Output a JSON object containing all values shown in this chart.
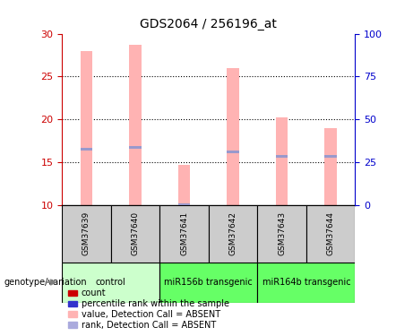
{
  "title": "GDS2064 / 256196_at",
  "samples": [
    "GSM37639",
    "GSM37640",
    "GSM37641",
    "GSM37642",
    "GSM37643",
    "GSM37644"
  ],
  "bar_values": [
    28.0,
    28.7,
    14.7,
    26.0,
    20.2,
    19.0
  ],
  "rank_values": [
    16.5,
    16.7,
    10.0,
    16.2,
    15.7,
    15.7
  ],
  "ylim_left": [
    10,
    30
  ],
  "ylim_right": [
    0,
    100
  ],
  "yticks_left": [
    10,
    15,
    20,
    25,
    30
  ],
  "yticks_right": [
    0,
    25,
    50,
    75,
    100
  ],
  "bar_color": "#FFB3B3",
  "rank_color": "#9999CC",
  "bar_width": 0.25,
  "group_positions": [
    {
      "start": 0,
      "end": 2,
      "label": "control",
      "color": "#CCFFCC"
    },
    {
      "start": 2,
      "end": 4,
      "label": "miR156b transgenic",
      "color": "#66FF66"
    },
    {
      "start": 4,
      "end": 6,
      "label": "miR164b transgenic",
      "color": "#66FF66"
    }
  ],
  "legend_items": [
    {
      "label": "count",
      "color": "#CC0000"
    },
    {
      "label": "percentile rank within the sample",
      "color": "#3333CC"
    },
    {
      "label": "value, Detection Call = ABSENT",
      "color": "#FFB3B3"
    },
    {
      "label": "rank, Detection Call = ABSENT",
      "color": "#AAAADD"
    }
  ],
  "ylabel_left_color": "#CC0000",
  "ylabel_right_color": "#0000CC",
  "sample_box_color": "#CCCCCC",
  "title_fontsize": 10,
  "tick_fontsize": 8,
  "sample_fontsize": 6.5,
  "group_fontsize": 7,
  "legend_fontsize": 7
}
